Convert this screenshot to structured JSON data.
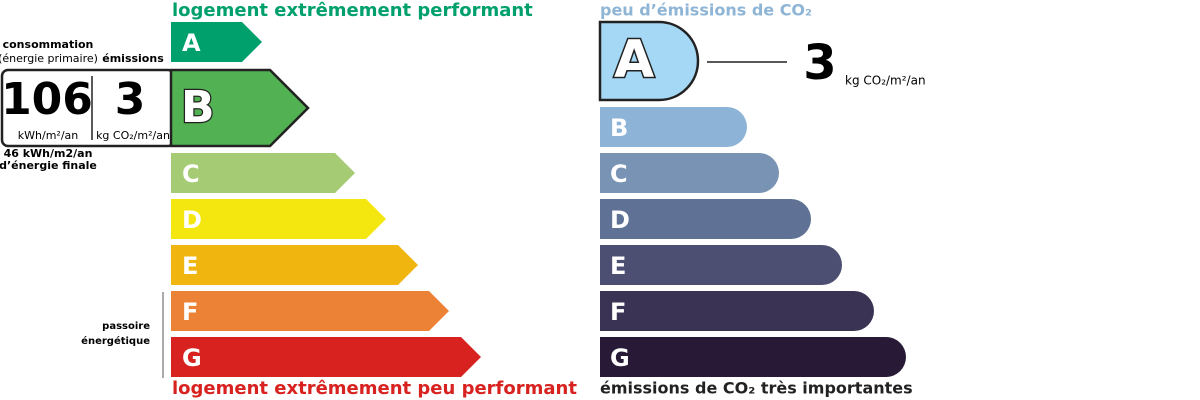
{
  "energy": {
    "top_label": "logement extrêmement performant",
    "bottom_label": "logement extrêmement peu performant",
    "classes": [
      "A",
      "B",
      "C",
      "D",
      "E",
      "F",
      "G"
    ],
    "consumption_label": "consommation",
    "primary_label": "(énergie primaire)",
    "emissions_label": "émissions",
    "consumption_value": 106,
    "consumption_unit": "kWh/m²/an",
    "emissions_value": 3,
    "emissions_unit": "kg CO₂/m²/an",
    "final_energy": [
      "46 kWh/m2/an",
      "d’énergie finale"
    ],
    "passoire": [
      "passoire",
      "énergétique"
    ]
  },
  "climate": {
    "top_label": "peu d’émissions de CO₂",
    "bottom_label": "émissions de CO₂ très importantes",
    "classes": [
      "A",
      "B",
      "C",
      "D",
      "E",
      "F",
      "G"
    ],
    "value": 3,
    "unit": "kg CO₂/m²/an"
  }
}
